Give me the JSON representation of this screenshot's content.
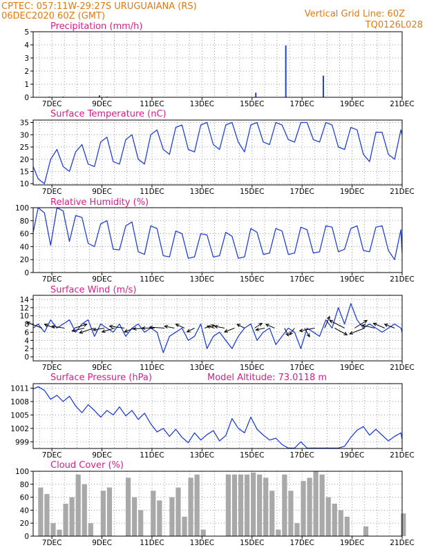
{
  "header": {
    "line1_left": "CPTEC:  057:11W-29:27S  URUGUAIANA (RS)",
    "line2_left": "06DEC2020 60Z (GMT)",
    "line1_right": "Vertical Grid Line: 60Z",
    "line2_right": "TQ0126L028"
  },
  "colors": {
    "header": "#e07a10",
    "title": "#d81b8a",
    "series": "#1f3fd8",
    "bars": "#a9a9a9",
    "arrows": "#000000"
  },
  "x_ticks": [
    "7DEC",
    "9DEC",
    "11DEC",
    "13DEC",
    "15DEC",
    "17DEC",
    "19DEC",
    "21DEC"
  ],
  "extra_title": "Model Altitude: 73.0118 m",
  "chart_data": [
    {
      "type": "bar",
      "title": "Precipitation (mm/h)",
      "ylim": [
        0,
        5
      ],
      "yticks": [
        "0",
        "1",
        "2",
        "3",
        "4",
        "5"
      ],
      "xlim_days": [
        6.25,
        21
      ],
      "bars": [
        {
          "x": 6.9,
          "value": 0.05
        },
        {
          "x": 7.45,
          "value": 0.05
        },
        {
          "x": 8.9,
          "value": 0.15
        },
        {
          "x": 9.2,
          "value": 0.05
        },
        {
          "x": 15.15,
          "value": 0.35
        },
        {
          "x": 16.35,
          "value": 3.95
        },
        {
          "x": 17.85,
          "value": 1.65
        }
      ]
    },
    {
      "type": "line",
      "title": "Surface Temperature (nC)",
      "ylim": [
        9.5,
        36
      ],
      "yticks": [
        "10",
        "15",
        "20",
        "25",
        "30",
        "35"
      ],
      "x": [
        6.25,
        6.45,
        6.7,
        6.95,
        7.2,
        7.45,
        7.7,
        7.95,
        8.2,
        8.45,
        8.7,
        8.95,
        9.2,
        9.45,
        9.7,
        9.95,
        10.2,
        10.45,
        10.7,
        10.95,
        11.2,
        11.45,
        11.7,
        11.95,
        12.2,
        12.45,
        12.7,
        12.95,
        13.2,
        13.45,
        13.7,
        13.95,
        14.2,
        14.45,
        14.7,
        14.95,
        15.2,
        15.45,
        15.7,
        15.95,
        16.2,
        16.45,
        16.7,
        16.95,
        17.2,
        17.45,
        17.7,
        17.95,
        18.2,
        18.45,
        18.7,
        18.95,
        19.2,
        19.45,
        19.7,
        19.95,
        20.2,
        20.45,
        20.7,
        20.95,
        21.0
      ],
      "values": [
        17,
        12,
        10,
        20,
        24,
        17,
        15,
        23,
        26,
        18,
        17,
        27,
        29,
        19,
        18,
        28,
        30,
        20,
        18,
        30,
        32,
        24,
        22,
        33,
        34,
        24,
        23,
        34,
        35,
        26,
        24,
        34,
        35,
        27,
        23,
        34,
        35,
        27,
        26,
        35,
        34,
        28,
        27,
        35,
        35,
        28,
        27,
        35,
        34,
        25,
        24,
        33,
        32,
        22,
        19,
        31,
        31,
        22,
        20,
        32,
        30
      ]
    },
    {
      "type": "line",
      "title": "Relative Humidity (%)",
      "ylim": [
        0,
        100
      ],
      "yticks": [
        "0",
        "20",
        "40",
        "60",
        "80",
        "100"
      ],
      "x": [
        6.25,
        6.45,
        6.7,
        6.95,
        7.2,
        7.45,
        7.7,
        7.95,
        8.2,
        8.45,
        8.7,
        8.95,
        9.2,
        9.45,
        9.7,
        9.95,
        10.2,
        10.45,
        10.7,
        10.95,
        11.2,
        11.45,
        11.7,
        11.95,
        12.2,
        12.45,
        12.7,
        12.95,
        13.2,
        13.45,
        13.7,
        13.95,
        14.2,
        14.45,
        14.7,
        14.95,
        15.2,
        15.45,
        15.7,
        15.95,
        16.2,
        16.45,
        16.7,
        16.95,
        17.2,
        17.45,
        17.7,
        17.95,
        18.2,
        18.45,
        18.7,
        18.95,
        19.2,
        19.45,
        19.7,
        19.95,
        20.2,
        20.45,
        20.7,
        20.95,
        21.0
      ],
      "values": [
        62,
        100,
        92,
        42,
        100,
        95,
        48,
        88,
        85,
        45,
        40,
        75,
        80,
        36,
        35,
        72,
        78,
        32,
        28,
        72,
        68,
        26,
        24,
        64,
        60,
        22,
        24,
        60,
        58,
        24,
        26,
        62,
        56,
        22,
        24,
        68,
        62,
        28,
        30,
        68,
        64,
        28,
        30,
        70,
        66,
        30,
        32,
        72,
        70,
        32,
        36,
        68,
        72,
        34,
        32,
        70,
        72,
        34,
        20,
        66,
        30
      ]
    },
    {
      "type": "line",
      "title": "Surface Wind (m/s)",
      "ylim": [
        -1,
        15
      ],
      "yticks": [
        "0",
        "2",
        "4",
        "6",
        "8",
        "10",
        "12",
        "14"
      ],
      "x": [
        6.25,
        6.45,
        6.7,
        6.95,
        7.2,
        7.45,
        7.7,
        7.95,
        8.2,
        8.45,
        8.7,
        8.95,
        9.2,
        9.45,
        9.7,
        9.95,
        10.2,
        10.45,
        10.7,
        10.95,
        11.2,
        11.45,
        11.7,
        11.95,
        12.2,
        12.45,
        12.7,
        12.95,
        13.2,
        13.45,
        13.7,
        13.95,
        14.2,
        14.45,
        14.7,
        14.95,
        15.2,
        15.45,
        15.7,
        15.95,
        16.2,
        16.45,
        16.7,
        16.95,
        17.2,
        17.45,
        17.7,
        17.95,
        18.2,
        18.45,
        18.7,
        18.95,
        19.2,
        19.45,
        19.7,
        19.95,
        20.2,
        20.45,
        20.7,
        20.95,
        21.0
      ],
      "values": [
        7,
        8,
        6,
        9,
        7,
        8,
        9,
        6,
        8,
        9,
        5,
        8,
        7,
        6,
        8,
        5,
        7,
        8,
        6,
        7,
        6,
        1,
        5,
        6,
        7,
        4,
        5,
        8,
        2,
        5,
        6,
        4,
        2,
        5,
        7,
        8,
        4,
        6,
        7,
        3,
        5,
        7,
        6,
        2,
        7,
        6,
        5,
        9,
        7,
        12,
        8,
        13,
        9,
        7,
        8,
        7,
        6,
        7,
        8,
        7,
        6
      ],
      "arrows": [
        {
          "x": 6.6,
          "u": -1.2,
          "v": 0.6
        },
        {
          "x": 7.1,
          "u": -0.8,
          "v": 0.4
        },
        {
          "x": 7.5,
          "u": -1.0,
          "v": 0.2
        },
        {
          "x": 7.9,
          "u": 1.0,
          "v": 0.4
        },
        {
          "x": 8.3,
          "u": -1.0,
          "v": -0.3
        },
        {
          "x": 8.7,
          "u": -1.2,
          "v": -0.5
        },
        {
          "x": 9.1,
          "u": -0.9,
          "v": -0.2
        },
        {
          "x": 9.5,
          "u": -1.0,
          "v": -0.4
        },
        {
          "x": 9.9,
          "u": -1.2,
          "v": 0.2
        },
        {
          "x": 10.3,
          "u": -0.8,
          "v": -0.4
        },
        {
          "x": 10.7,
          "u": -0.9,
          "v": -0.1
        },
        {
          "x": 11.1,
          "u": -1.0,
          "v": 0.0
        },
        {
          "x": 11.5,
          "u": -1.2,
          "v": 0.1
        },
        {
          "x": 11.9,
          "u": -0.8,
          "v": 0.2
        },
        {
          "x": 12.3,
          "u": -0.7,
          "v": 0.4
        },
        {
          "x": 12.7,
          "u": -0.6,
          "v": -0.4
        },
        {
          "x": 13.1,
          "u": 0.8,
          "v": 0.3
        },
        {
          "x": 13.5,
          "u": -0.6,
          "v": 0.2
        },
        {
          "x": 13.9,
          "u": -0.8,
          "v": 0.2
        },
        {
          "x": 14.3,
          "u": -0.8,
          "v": -0.4
        },
        {
          "x": 14.7,
          "u": -0.6,
          "v": 0.4
        },
        {
          "x": 15.1,
          "u": 0.6,
          "v": 0.5
        },
        {
          "x": 15.5,
          "u": -0.7,
          "v": -0.2
        },
        {
          "x": 15.9,
          "u": -0.7,
          "v": 0.4
        },
        {
          "x": 16.3,
          "u": 0.3,
          "v": -0.8
        },
        {
          "x": 16.7,
          "u": -0.4,
          "v": -0.7
        },
        {
          "x": 17.1,
          "u": 0.4,
          "v": -0.9
        },
        {
          "x": 17.5,
          "u": -1.2,
          "v": -0.3
        },
        {
          "x": 17.9,
          "u": 0.4,
          "v": 1.2
        },
        {
          "x": 18.3,
          "u": 1.0,
          "v": -0.7
        },
        {
          "x": 18.7,
          "u": -1.2,
          "v": 0.8
        },
        {
          "x": 19.1,
          "u": 1.0,
          "v": 0.8
        },
        {
          "x": 19.5,
          "u": -1.2,
          "v": -0.6
        },
        {
          "x": 19.9,
          "u": -1.0,
          "v": 0.3
        },
        {
          "x": 20.3,
          "u": -0.9,
          "v": 0.5
        },
        {
          "x": 20.7,
          "u": -0.8,
          "v": 0.4
        }
      ]
    },
    {
      "type": "line",
      "title": "Surface Pressure (hPa)",
      "ylim": [
        997.5,
        1012
      ],
      "yticks": [
        "999",
        "1002",
        "1005",
        "1008",
        "1011"
      ],
      "x": [
        6.25,
        6.45,
        6.7,
        6.95,
        7.2,
        7.45,
        7.7,
        7.95,
        8.2,
        8.45,
        8.7,
        8.95,
        9.2,
        9.45,
        9.7,
        9.95,
        10.2,
        10.45,
        10.7,
        10.95,
        11.2,
        11.45,
        11.7,
        11.95,
        12.2,
        12.45,
        12.7,
        12.95,
        13.2,
        13.45,
        13.7,
        13.95,
        14.2,
        14.45,
        14.7,
        14.95,
        15.2,
        15.45,
        15.7,
        15.95,
        16.2,
        16.45,
        16.7,
        16.95,
        17.2,
        17.45,
        17.7,
        17.95,
        18.2,
        18.45,
        18.7,
        18.95,
        19.2,
        19.45,
        19.7,
        19.95,
        20.2,
        20.45,
        20.7,
        20.95,
        21.0
      ],
      "values": [
        1010.8,
        1011.3,
        1010.5,
        1008.5,
        1009.4,
        1008.0,
        1009.2,
        1007.0,
        1005.5,
        1007.3,
        1006.0,
        1004.5,
        1006.0,
        1005.0,
        1006.8,
        1004.8,
        1006.0,
        1004.0,
        1005.4,
        1003.0,
        1001.2,
        1002.0,
        1000.2,
        1001.8,
        1000.0,
        998.8,
        1001.0,
        999.4,
        1000.6,
        1001.5,
        999.2,
        1000.4,
        1004.2,
        1002.0,
        1001.0,
        1004.5,
        1001.8,
        1000.5,
        999.4,
        999.8,
        998.4,
        997.6,
        997.6,
        999.0,
        997.6,
        997.6,
        997.6,
        997.6,
        997.6,
        997.6,
        998.0,
        1000.0,
        1001.6,
        1002.4,
        1000.5,
        1001.8,
        1000.5,
        999.2,
        1000.2,
        1001.0,
        999.6
      ]
    },
    {
      "type": "bar",
      "title": "Cloud Cover (%)",
      "ylim": [
        0,
        100
      ],
      "yticks": [
        "0",
        "20",
        "40",
        "60",
        "80",
        "100"
      ],
      "x": [
        6.25,
        6.45,
        6.7,
        6.95,
        7.2,
        7.45,
        7.7,
        7.95,
        8.2,
        8.45,
        8.7,
        8.95,
        9.2,
        9.45,
        9.7,
        9.95,
        10.2,
        10.45,
        10.7,
        10.95,
        11.2,
        11.45,
        11.7,
        11.95,
        12.2,
        12.45,
        12.7,
        12.95,
        13.2,
        13.45,
        13.7,
        13.95,
        14.2,
        14.45,
        14.7,
        14.95,
        15.2,
        15.45,
        15.7,
        15.95,
        16.2,
        16.45,
        16.7,
        16.95,
        17.2,
        17.45,
        17.7,
        17.95,
        18.2,
        18.45,
        18.7,
        18.95,
        19.2,
        19.45,
        19.7,
        19.95,
        20.2,
        20.45,
        20.7,
        20.95
      ],
      "values": [
        0,
        75,
        65,
        20,
        10,
        50,
        60,
        95,
        80,
        20,
        0,
        70,
        75,
        0,
        0,
        90,
        60,
        40,
        0,
        70,
        55,
        0,
        60,
        75,
        30,
        90,
        95,
        10,
        0,
        0,
        0,
        95,
        95,
        95,
        95,
        98,
        95,
        90,
        70,
        10,
        95,
        70,
        20,
        85,
        90,
        100,
        95,
        60,
        50,
        40,
        30,
        0,
        0,
        15,
        0,
        0,
        0,
        0,
        0,
        35
      ]
    }
  ]
}
